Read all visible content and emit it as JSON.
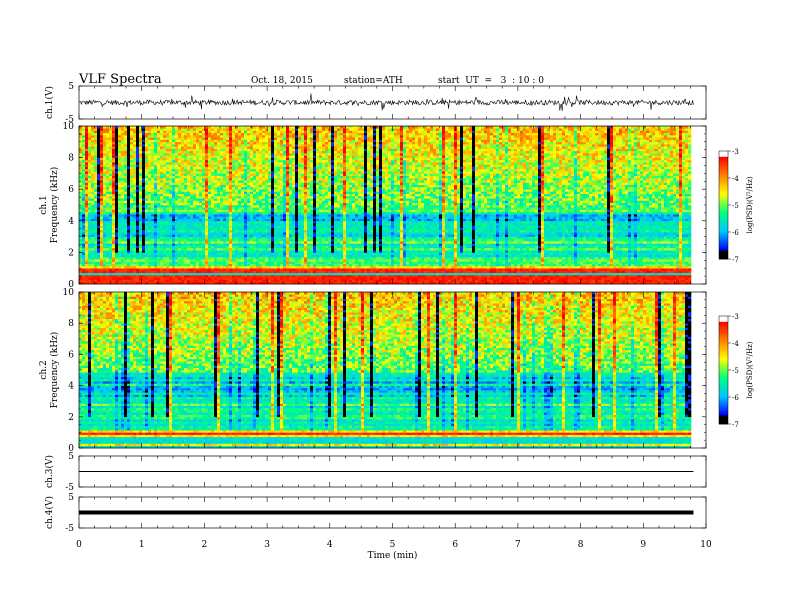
{
  "header": {
    "title": "VLF  Spectra",
    "date": "Oct. 18, 2015",
    "station": "station=ATH",
    "start_ut": "start  UT  =   3  : 10 : 0"
  },
  "colors": {
    "trace": "#000000",
    "colormap": [
      "#000000",
      "#0000ff",
      "#00c8ff",
      "#00ff7f",
      "#ffff00",
      "#ff8000",
      "#ff0000",
      "#ffffff"
    ]
  },
  "chart_data": [
    {
      "type": "line",
      "panel": "ch1-waveform",
      "ylabel": "ch.1(V)",
      "ylim": [
        -5,
        5
      ],
      "yticks": [
        "5",
        "-5"
      ],
      "x_range_min": [
        0,
        9.8
      ],
      "series": [
        {
          "values_description_level": 0,
          "noise_amplitude": 1.5
        }
      ]
    },
    {
      "type": "heatmap",
      "panel": "ch1-spectrogram",
      "ylabel": "ch.1\nFrequency  (kHz)",
      "ylim": [
        0,
        10
      ],
      "yticks": [
        "0",
        "2",
        "4",
        "6",
        "8",
        "10"
      ],
      "x_range_min": [
        0,
        9.8
      ],
      "colorbar": {
        "label": "log(PSD)(V²/Hz)",
        "ticks": [
          "-3",
          "-4",
          "-5",
          "-6",
          "-7"
        ],
        "range": [
          -7,
          -3
        ]
      }
    },
    {
      "type": "heatmap",
      "panel": "ch2-spectrogram",
      "ylabel": "ch.2\nFrequency  (kHz)",
      "ylim": [
        0,
        10
      ],
      "yticks": [
        "0",
        "2",
        "4",
        "6",
        "8",
        "10"
      ],
      "x_range_min": [
        0,
        9.8
      ],
      "colorbar": {
        "label": "log(PSD)(V²/Hz)",
        "ticks": [
          "-3",
          "-4",
          "-5",
          "-6",
          "-7"
        ],
        "range": [
          -7,
          -3
        ]
      }
    },
    {
      "type": "line",
      "panel": "ch3-waveform",
      "ylabel": "ch.3(V)",
      "ylim": [
        -5,
        5
      ],
      "yticks": [
        "5",
        "-5"
      ],
      "x_range_min": [
        0,
        9.8
      ],
      "series": [
        {
          "level": 0
        }
      ]
    },
    {
      "type": "line",
      "panel": "ch4-waveform",
      "ylabel": "ch.4(V)",
      "ylim": [
        -5,
        5
      ],
      "yticks": [
        "5",
        "-5"
      ],
      "x_range_min": [
        0,
        9.8
      ],
      "series": [
        {
          "level": 0
        }
      ]
    }
  ],
  "xaxis": {
    "label": "Time  (min)",
    "range": [
      0,
      10
    ],
    "ticks": [
      "0",
      "1",
      "2",
      "3",
      "4",
      "5",
      "6",
      "7",
      "8",
      "9",
      "10"
    ]
  }
}
